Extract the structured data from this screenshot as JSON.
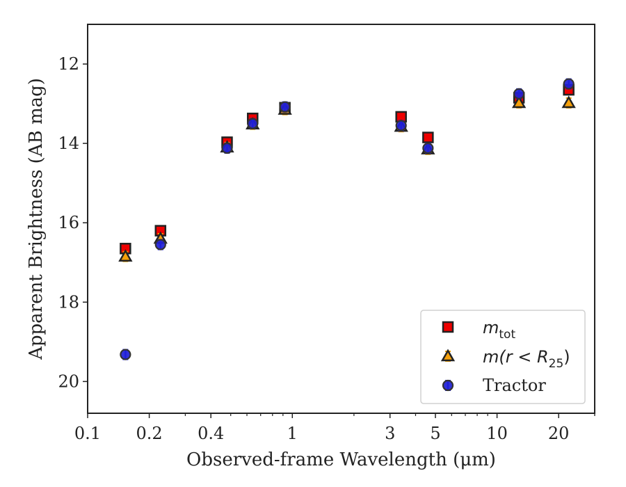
{
  "chart_data": {
    "type": "scatter",
    "xlabel": "Observed-frame Wavelength (μm)",
    "ylabel": "Apparent Brightness (AB mag)",
    "x_scale": "log",
    "xlim": [
      0.1,
      30
    ],
    "ylim": [
      20.8,
      11.0
    ],
    "y_inverted": true,
    "x_ticks": [
      {
        "value": 0.1,
        "label": "0.1"
      },
      {
        "value": 0.2,
        "label": "0.2"
      },
      {
        "value": 0.4,
        "label": "0.4"
      },
      {
        "value": 1,
        "label": "1"
      },
      {
        "value": 3,
        "label": "3"
      },
      {
        "value": 5,
        "label": "5"
      },
      {
        "value": 10,
        "label": "10"
      },
      {
        "value": 20,
        "label": "20"
      }
    ],
    "y_ticks": [
      {
        "value": 12,
        "label": "12"
      },
      {
        "value": 14,
        "label": "14"
      },
      {
        "value": 16,
        "label": "16"
      },
      {
        "value": 18,
        "label": "18"
      },
      {
        "value": 20,
        "label": "20"
      }
    ],
    "grid": false,
    "legend_position": "bottom-right",
    "series": [
      {
        "name": "m_tot",
        "legend_main": "m",
        "legend_sub": "tot",
        "marker": "square",
        "color": "#ee0000",
        "errorbar_color": "#ee0000",
        "x": [
          0.153,
          0.227,
          0.48,
          0.64,
          0.92,
          3.4,
          4.6,
          12.8,
          22.4
        ],
        "y": [
          16.65,
          16.2,
          13.97,
          13.37,
          13.1,
          13.33,
          13.85,
          12.85,
          12.65
        ]
      },
      {
        "name": "m(r < R_25)",
        "legend_main": "m(r < R",
        "legend_sub": "25",
        "legend_tail": ")",
        "marker": "triangle",
        "color": "#f5a00a",
        "errorbar_color": "#f0a000",
        "x": [
          0.153,
          0.227,
          0.48,
          0.64,
          0.92,
          3.4,
          4.6,
          12.8,
          22.4
        ],
        "y": [
          16.85,
          16.4,
          14.1,
          13.52,
          13.15,
          13.58,
          14.15,
          12.98,
          12.98
        ]
      },
      {
        "name": "Tractor",
        "marker": "circle",
        "color": "#1f1fd6",
        "errorbar_color": "#2020ee",
        "x": [
          0.153,
          0.227,
          0.48,
          0.64,
          0.92,
          3.4,
          4.6,
          12.8,
          22.4
        ],
        "y": [
          19.32,
          16.55,
          14.12,
          13.5,
          13.08,
          13.55,
          14.12,
          12.75,
          12.5
        ]
      }
    ]
  }
}
